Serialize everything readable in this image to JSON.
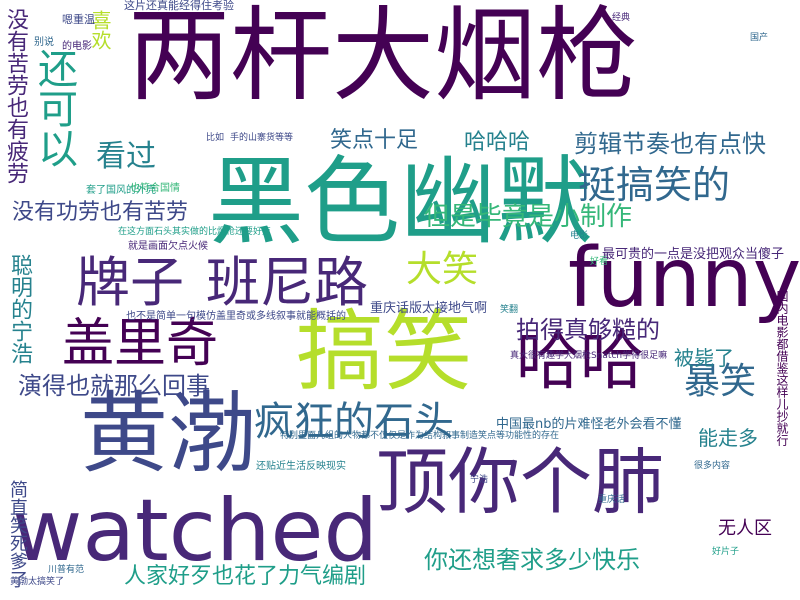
{
  "palette": {
    "dark_purple": "#440154",
    "purple": "#482878",
    "indigo": "#3e4989",
    "blue": "#31688e",
    "teal_blue": "#26828e",
    "teal": "#1f9e89",
    "green": "#35b779",
    "light_green": "#6ece58",
    "lime": "#b5de2b",
    "yellow": "#fde725"
  },
  "words": [
    "两杆大烟枪",
    "黑色幽默",
    "funny",
    "搞笑",
    "黄渤",
    "watched",
    "顶你个肺",
    "牌子",
    "班尼路",
    "盖里奇",
    "哈哈",
    "挺搞笑的",
    "疯狂的石头",
    "还可以",
    "看过",
    "大笑",
    "暴笑",
    "没有苦劳也有疲劳",
    "没有功劳也有苦劳",
    "但是毕竟是小制作",
    "剪辑节奏也有点快",
    "拍得真够糙的",
    "演得也就那么回事",
    "你还想奢求多少快乐",
    "人家好歹也花了力气编剧",
    "聪明的宁浩",
    "笑点十足",
    "哈哈哈",
    "喜欢",
    "被毙了",
    "能走多",
    "无人区",
    "简直笑死爹了",
    "最可贵的一点是没把观众当傻子",
    "重庆话版太接地气啊",
    "中国最nb的片难怪老外会看不懂",
    "真大很有趣学大烟枪Snatch学得很足嘛",
    "这片还真能经得住考验",
    "特别里面几组的人物都不仅仅是作为结构叙事制造笑点等功能性的存在",
    "国内电影都借鉴这样儿抄就行",
    "也不是简单一句模仿盖里奇或多线叙事就能概括的",
    "就是画面欠点火候",
    "在这方面石头其实做的比烟枪还要好点",
    "套了国风的外壳",
    "也符合国情",
    "还贴近生活反映现实",
    "别说",
    "嗯重温",
    "的电影",
    "比如",
    "手的山寨货等等",
    "重庆话",
    "很多内容",
    "黄渤太搞笑了",
    "川普有范",
    "电影",
    "好片子",
    "好看",
    "笑翻",
    "宁浩",
    "经典",
    "国产"
  ]
}
